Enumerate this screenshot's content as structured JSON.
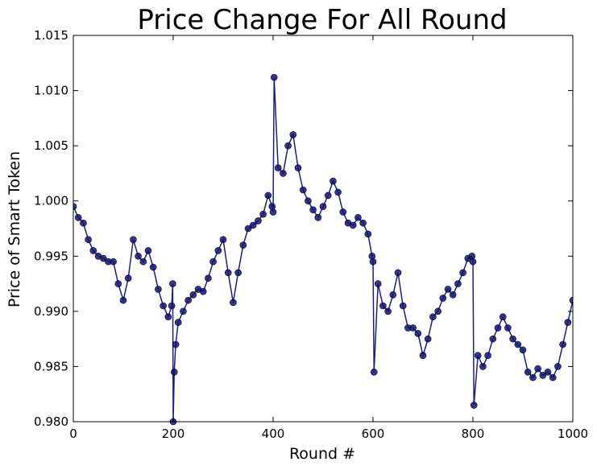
{
  "chart_data": {
    "type": "line",
    "title": "Price Change For All Round",
    "xlabel": "Round #",
    "ylabel": "Price of Smart Token",
    "xlim": [
      0,
      1000
    ],
    "ylim": [
      0.98,
      1.015
    ],
    "xticks": [
      0,
      200,
      400,
      600,
      800,
      1000
    ],
    "xtick_labels": [
      "0",
      "200",
      "400",
      "600",
      "800",
      "1000"
    ],
    "yticks": [
      0.98,
      0.985,
      0.99,
      0.995,
      1.0,
      1.005,
      1.01,
      1.015
    ],
    "ytick_labels": [
      "0.980",
      "0.985",
      "0.990",
      "0.995",
      "1.000",
      "1.005",
      "1.010",
      "1.015"
    ],
    "grid": false,
    "series": [
      {
        "line_color": "#1f1f7a",
        "marker_color": "#14146e",
        "markers": true,
        "x": [
          0,
          10,
          20,
          30,
          40,
          50,
          60,
          70,
          80,
          90,
          100,
          110,
          120,
          130,
          140,
          150,
          160,
          170,
          180,
          190,
          197,
          199,
          200,
          202,
          205,
          210,
          220,
          230,
          240,
          250,
          260,
          270,
          280,
          290,
          300,
          310,
          320,
          330,
          340,
          350,
          360,
          370,
          380,
          390,
          398,
          400,
          402,
          410,
          420,
          430,
          440,
          450,
          460,
          470,
          480,
          490,
          500,
          510,
          520,
          530,
          540,
          550,
          560,
          570,
          580,
          590,
          598,
          600,
          602,
          610,
          620,
          630,
          640,
          650,
          660,
          670,
          680,
          690,
          700,
          710,
          720,
          730,
          740,
          750,
          760,
          770,
          780,
          790,
          798,
          800,
          802,
          810,
          820,
          830,
          840,
          850,
          860,
          870,
          880,
          890,
          900,
          910,
          920,
          930,
          940,
          950,
          960,
          970,
          980,
          990,
          1000
        ],
        "y": [
          0.9995,
          0.9985,
          0.998,
          0.9965,
          0.9955,
          0.995,
          0.9948,
          0.9945,
          0.9945,
          0.9925,
          0.991,
          0.993,
          0.9965,
          0.995,
          0.9945,
          0.9955,
          0.994,
          0.992,
          0.9905,
          0.9895,
          0.9905,
          0.9925,
          0.98,
          0.9845,
          0.987,
          0.989,
          0.99,
          0.991,
          0.9915,
          0.992,
          0.9918,
          0.993,
          0.9945,
          0.9955,
          0.9965,
          0.9935,
          0.9908,
          0.9935,
          0.996,
          0.9975,
          0.9978,
          0.9982,
          0.9988,
          1.0005,
          0.9995,
          0.999,
          1.0112,
          1.003,
          1.0025,
          1.005,
          1.006,
          1.003,
          1.001,
          1.0,
          0.9992,
          0.9985,
          0.9995,
          1.0005,
          1.0018,
          1.0008,
          0.999,
          0.998,
          0.9978,
          0.9985,
          0.998,
          0.997,
          0.995,
          0.9945,
          0.9845,
          0.9925,
          0.9905,
          0.99,
          0.9915,
          0.9935,
          0.9905,
          0.9885,
          0.9885,
          0.988,
          0.986,
          0.9875,
          0.9895,
          0.99,
          0.9912,
          0.992,
          0.9915,
          0.9925,
          0.9935,
          0.9948,
          0.995,
          0.9945,
          0.9815,
          0.986,
          0.985,
          0.986,
          0.9875,
          0.9885,
          0.9895,
          0.9885,
          0.9875,
          0.987,
          0.9865,
          0.9845,
          0.984,
          0.9848,
          0.9842,
          0.9845,
          0.984,
          0.985,
          0.987,
          0.989,
          0.991
        ]
      }
    ]
  }
}
